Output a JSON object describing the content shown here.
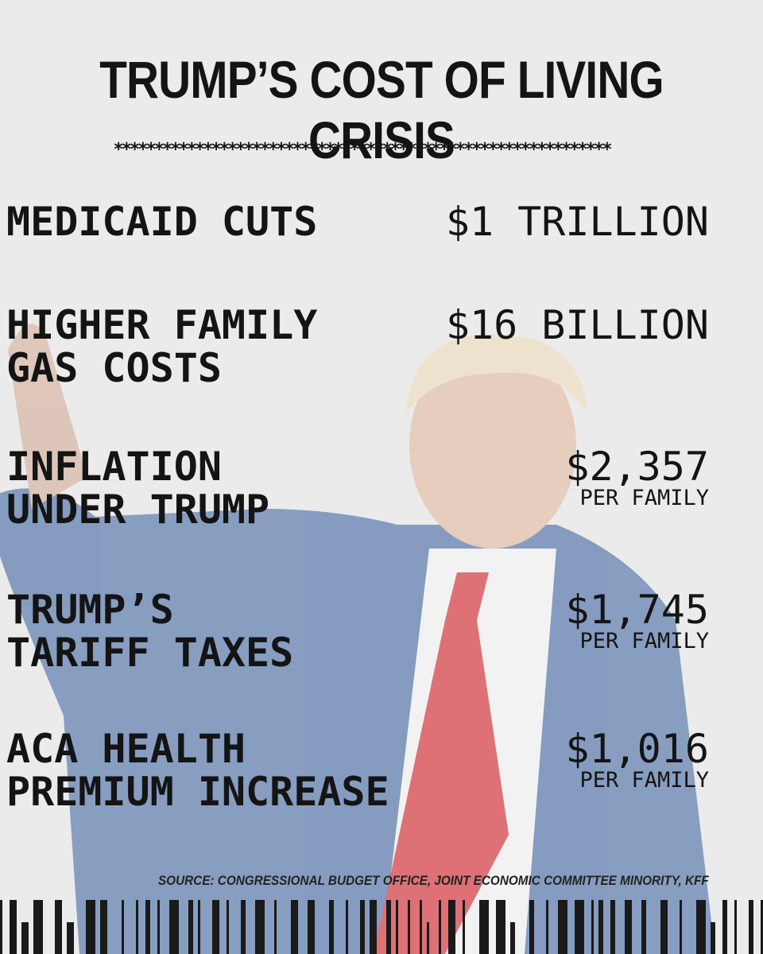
{
  "title": "TRUMP’S COST OF LIVING CRISIS",
  "divider": "*************************************************************",
  "rows": [
    {
      "label": [
        "MEDICAID CUTS"
      ],
      "amount": "$1 TRILLION"
    },
    {
      "label": [
        "HIGHER FAMILY",
        "GAS COSTS"
      ],
      "amount": "$16 BILLION"
    },
    {
      "label": [
        "INFLATION",
        "UNDER TRUMP"
      ],
      "amount": "$2,357",
      "unit": "PER FAMILY"
    },
    {
      "label": [
        "TRUMP’S",
        "TARIFF TAXES"
      ],
      "amount": "$1,745",
      "unit": "PER FAMILY"
    },
    {
      "label": [
        "ACA HEALTH",
        "PREMIUM INCREASE"
      ],
      "amount": "$1,016",
      "unit": "PER FAMILY"
    }
  ],
  "source": "SOURCE: CONGRESSIONAL BUDGET OFFICE, JOINT ECONOMIC COMMITTEE MINORITY, KFF"
}
